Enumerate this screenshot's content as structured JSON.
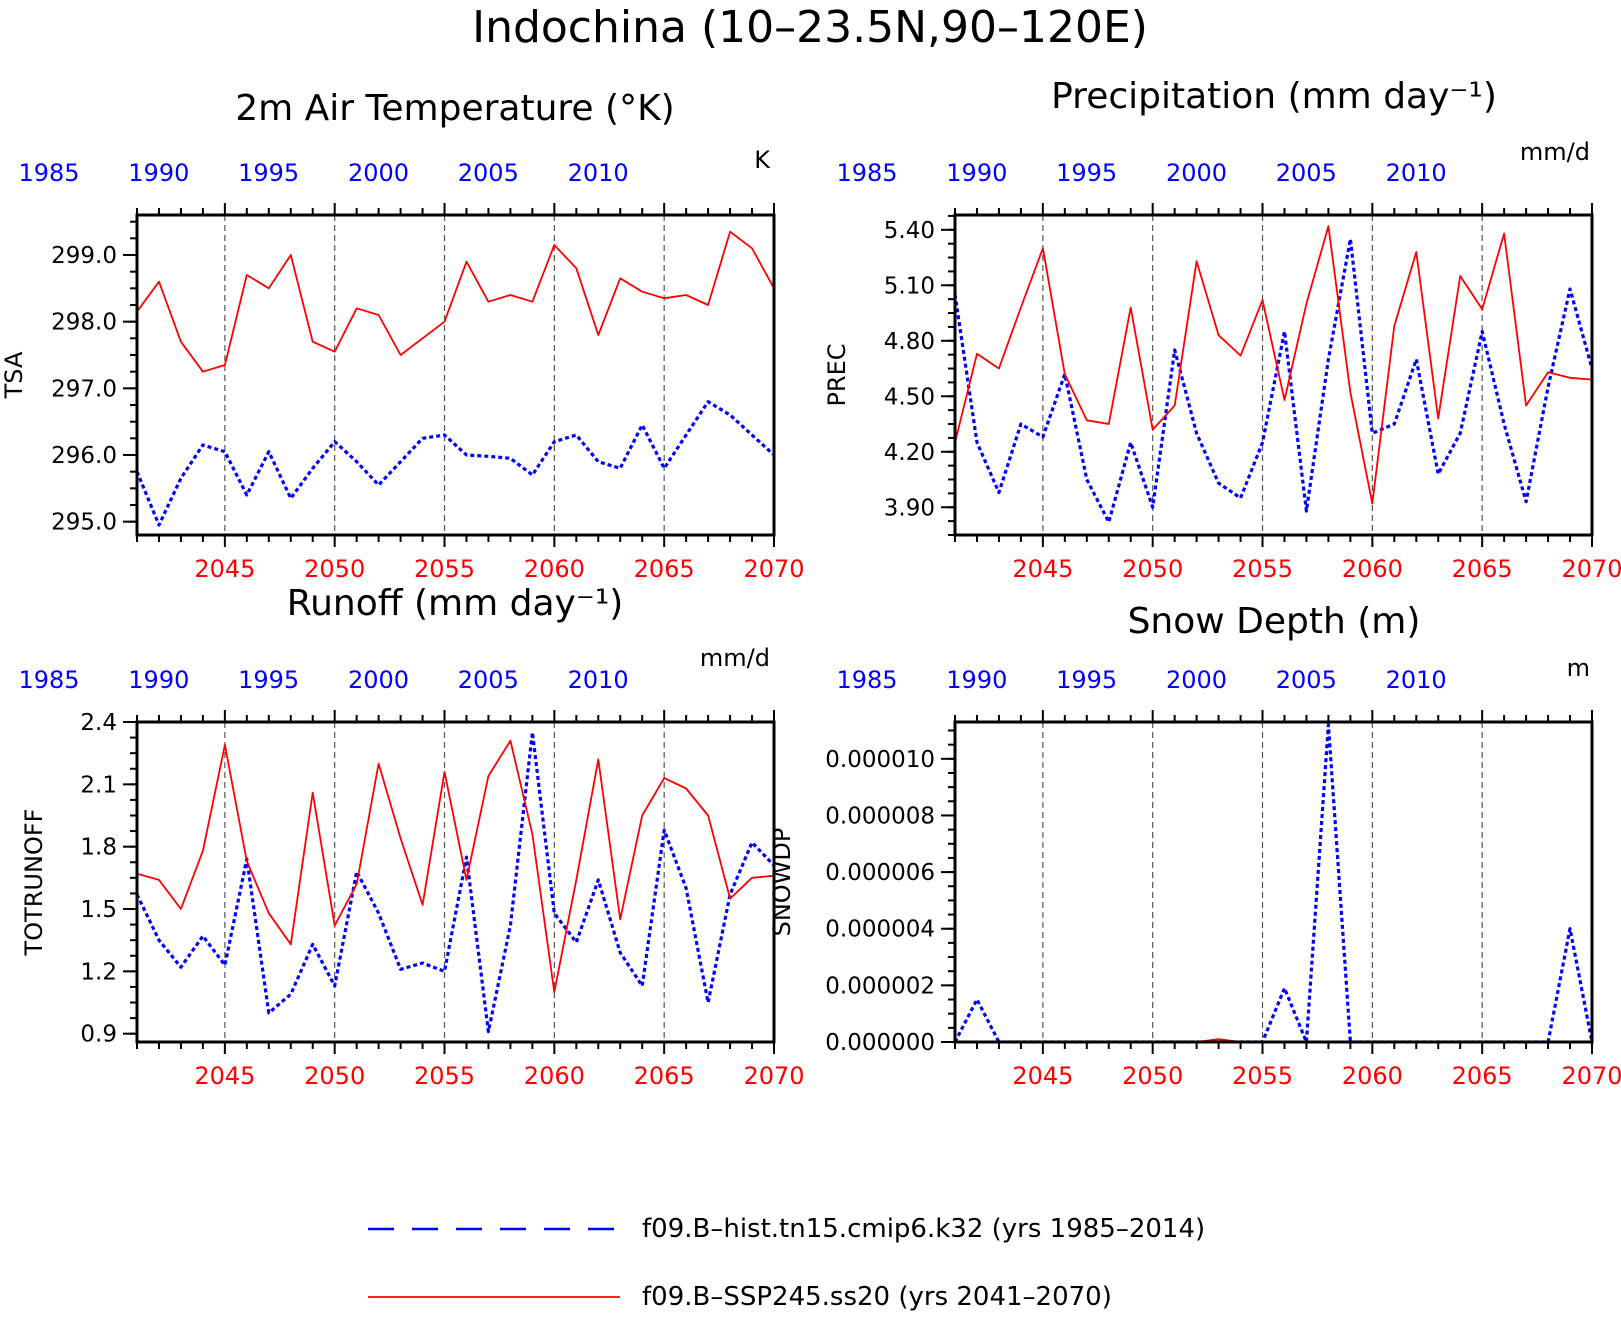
{
  "figure": {
    "title": "Indochina (10–23.5N,90–120E)"
  },
  "legend": {
    "placement": "bottom-center",
    "items": [
      {
        "label": "f09.B–hist.tn15.cmip6.k32 (yrs 1985–2014)",
        "color": "#0000ff",
        "style": "dashed"
      },
      {
        "label": "f09.B–SSP245.ss20 (yrs 2041–2070)",
        "color": "#ff0000",
        "style": "solid"
      }
    ]
  },
  "chart_data": [
    {
      "type": "line",
      "title": "2m Air Temperature (°K)",
      "ylabel": "TSA",
      "unit": "K",
      "ylim": [
        294.8,
        299.6
      ],
      "yticks": [
        295.0,
        296.0,
        297.0,
        298.0,
        299.0
      ],
      "ytick_labels": [
        "295.0",
        "296.0",
        "297.0",
        "298.0",
        "299.0"
      ],
      "x_bottom": {
        "ticks": [
          2045,
          2050,
          2055,
          2060,
          2065,
          2070
        ],
        "range": [
          2041,
          2070
        ]
      },
      "x_top": {
        "ticks": [
          1985,
          1990,
          1995,
          2000,
          2005,
          2010
        ]
      },
      "grid": "vertical dashed at bottom ticks",
      "series": [
        {
          "name": "f09.B–hist.tn15.cmip6.k32 (yrs 1985–2014)",
          "color": "#0000ff",
          "style": "dashed",
          "x": [
            2041,
            2042,
            2043,
            2044,
            2045,
            2046,
            2047,
            2048,
            2049,
            2050,
            2051,
            2052,
            2053,
            2054,
            2055,
            2056,
            2057,
            2058,
            2059,
            2060,
            2061,
            2062,
            2063,
            2064,
            2065,
            2066,
            2067,
            2068,
            2069,
            2070
          ],
          "values": [
            295.75,
            294.95,
            295.65,
            296.15,
            296.05,
            295.4,
            296.05,
            295.35,
            295.8,
            296.2,
            295.9,
            295.55,
            295.9,
            296.25,
            296.3,
            296.0,
            295.98,
            295.95,
            295.7,
            296.2,
            296.3,
            295.9,
            295.8,
            296.45,
            295.8,
            296.3,
            296.8,
            296.6,
            296.3,
            296.0
          ]
        },
        {
          "name": "f09.B–SSP245.ss20 (yrs 2041–2070)",
          "color": "#ff0000",
          "style": "solid",
          "x": [
            2041,
            2042,
            2043,
            2044,
            2045,
            2046,
            2047,
            2048,
            2049,
            2050,
            2051,
            2052,
            2053,
            2054,
            2055,
            2056,
            2057,
            2058,
            2059,
            2060,
            2061,
            2062,
            2063,
            2064,
            2065,
            2066,
            2067,
            2068,
            2069,
            2070
          ],
          "values": [
            298.15,
            298.6,
            297.7,
            297.25,
            297.35,
            298.7,
            298.5,
            299.0,
            297.7,
            297.55,
            298.2,
            298.1,
            297.5,
            297.75,
            298.0,
            298.9,
            298.3,
            298.4,
            298.3,
            299.15,
            298.8,
            297.8,
            298.65,
            298.45,
            298.35,
            298.4,
            298.25,
            299.35,
            299.1,
            298.5
          ]
        }
      ]
    },
    {
      "type": "line",
      "title": "Precipitation (mm day⁻¹)",
      "ylabel": "PREC",
      "unit": "mm/d",
      "ylim": [
        3.75,
        5.48
      ],
      "yticks": [
        3.9,
        4.2,
        4.5,
        4.8,
        5.1,
        5.4
      ],
      "ytick_labels": [
        "3.90",
        "4.20",
        "4.50",
        "4.80",
        "5.10",
        "5.40"
      ],
      "x_bottom": {
        "ticks": [
          2045,
          2050,
          2055,
          2060,
          2065,
          2070
        ],
        "range": [
          2041,
          2070
        ]
      },
      "x_top": {
        "ticks": [
          1985,
          1990,
          1995,
          2000,
          2005,
          2010
        ]
      },
      "grid": "vertical dashed at bottom ticks",
      "series": [
        {
          "name": "f09.B–hist.tn15.cmip6.k32 (yrs 1985–2014)",
          "color": "#0000ff",
          "style": "dashed",
          "x": [
            2041,
            2042,
            2043,
            2044,
            2045,
            2046,
            2047,
            2048,
            2049,
            2050,
            2051,
            2052,
            2053,
            2054,
            2055,
            2056,
            2057,
            2058,
            2059,
            2060,
            2061,
            2062,
            2063,
            2064,
            2065,
            2066,
            2067,
            2068,
            2069,
            2070
          ],
          "values": [
            5.05,
            4.25,
            3.98,
            4.35,
            4.28,
            4.62,
            4.05,
            3.82,
            4.25,
            3.9,
            4.75,
            4.3,
            4.03,
            3.95,
            4.25,
            4.85,
            3.88,
            4.7,
            5.35,
            4.3,
            4.35,
            4.7,
            4.08,
            4.3,
            4.85,
            4.35,
            3.93,
            4.55,
            5.08,
            4.65
          ]
        },
        {
          "name": "f09.B–SSP245.ss20 (yrs 2041–2070)",
          "color": "#ff0000",
          "style": "solid",
          "x": [
            2041,
            2042,
            2043,
            2044,
            2045,
            2046,
            2047,
            2048,
            2049,
            2050,
            2051,
            2052,
            2053,
            2054,
            2055,
            2056,
            2057,
            2058,
            2059,
            2060,
            2061,
            2062,
            2063,
            2064,
            2065,
            2066,
            2067,
            2068,
            2069,
            2070
          ],
          "values": [
            4.25,
            4.73,
            4.65,
            4.98,
            5.3,
            4.62,
            4.37,
            4.35,
            4.98,
            4.32,
            4.45,
            5.23,
            4.83,
            4.72,
            5.02,
            4.48,
            5.0,
            5.42,
            4.52,
            3.92,
            4.88,
            5.28,
            4.38,
            5.15,
            4.97,
            5.38,
            4.45,
            4.63,
            4.6,
            4.59
          ]
        }
      ]
    },
    {
      "type": "line",
      "title": "Runoff (mm day⁻¹)",
      "ylabel": "TOTRUNOFF",
      "unit": "mm/d",
      "ylim": [
        0.86,
        2.4
      ],
      "yticks": [
        0.9,
        1.2,
        1.5,
        1.8,
        2.1,
        2.4
      ],
      "ytick_labels": [
        "0.9",
        "1.2",
        "1.5",
        "1.8",
        "2.1",
        "2.4"
      ],
      "x_bottom": {
        "ticks": [
          2045,
          2050,
          2055,
          2060,
          2065,
          2070
        ],
        "range": [
          2041,
          2070
        ]
      },
      "x_top": {
        "ticks": [
          1985,
          1990,
          1995,
          2000,
          2005,
          2010
        ]
      },
      "grid": "vertical dashed at bottom ticks",
      "series": [
        {
          "name": "f09.B–hist.tn15.cmip6.k32 (yrs 1985–2014)",
          "color": "#0000ff",
          "style": "dashed",
          "x": [
            2041,
            2042,
            2043,
            2044,
            2045,
            2046,
            2047,
            2048,
            2049,
            2050,
            2051,
            2052,
            2053,
            2054,
            2055,
            2056,
            2057,
            2058,
            2059,
            2060,
            2061,
            2062,
            2063,
            2064,
            2065,
            2066,
            2067,
            2068,
            2069,
            2070
          ],
          "values": [
            1.57,
            1.35,
            1.22,
            1.37,
            1.23,
            1.74,
            1.0,
            1.09,
            1.33,
            1.13,
            1.68,
            1.48,
            1.21,
            1.24,
            1.2,
            1.75,
            0.91,
            1.42,
            2.35,
            1.48,
            1.34,
            1.64,
            1.29,
            1.13,
            1.88,
            1.6,
            1.05,
            1.57,
            1.82,
            1.71
          ]
        },
        {
          "name": "f09.B–SSP245.ss20 (yrs 2041–2070)",
          "color": "#ff0000",
          "style": "solid",
          "x": [
            2041,
            2042,
            2043,
            2044,
            2045,
            2046,
            2047,
            2048,
            2049,
            2050,
            2051,
            2052,
            2053,
            2054,
            2055,
            2056,
            2057,
            2058,
            2059,
            2060,
            2061,
            2062,
            2063,
            2064,
            2065,
            2066,
            2067,
            2068,
            2069,
            2070
          ],
          "values": [
            1.67,
            1.64,
            1.5,
            1.78,
            2.29,
            1.73,
            1.48,
            1.33,
            2.06,
            1.42,
            1.62,
            2.2,
            1.84,
            1.52,
            2.16,
            1.64,
            2.14,
            2.31,
            1.86,
            1.1,
            1.64,
            2.22,
            1.45,
            1.95,
            2.13,
            2.08,
            1.95,
            1.55,
            1.65,
            1.66
          ]
        }
      ]
    },
    {
      "type": "line",
      "title": "Snow Depth (m)",
      "ylabel": "SNOWDP",
      "unit": "m",
      "ylim": [
        0.0,
        1.13e-05
      ],
      "yticks": [
        0.0,
        2e-06,
        4e-06,
        6e-06,
        8e-06,
        1e-05
      ],
      "ytick_labels": [
        "0.000000",
        "0.000002",
        "0.000004",
        "0.000006",
        "0.000008",
        "0.000010"
      ],
      "x_bottom": {
        "ticks": [
          2045,
          2050,
          2055,
          2060,
          2065,
          2070
        ],
        "range": [
          2041,
          2070
        ]
      },
      "x_top": {
        "ticks": [
          1985,
          1990,
          1995,
          2000,
          2005,
          2010
        ]
      },
      "grid": "vertical dashed at bottom ticks",
      "series": [
        {
          "name": "f09.B–hist.tn15.cmip6.k32 (yrs 1985–2014)",
          "color": "#0000ff",
          "style": "dashed",
          "x": [
            2041,
            2042,
            2043,
            2044,
            2045,
            2046,
            2047,
            2048,
            2049,
            2050,
            2051,
            2052,
            2053,
            2054,
            2055,
            2056,
            2057,
            2058,
            2059,
            2060,
            2061,
            2062,
            2063,
            2064,
            2065,
            2066,
            2067,
            2068,
            2069,
            2070
          ],
          "values": [
            0.0,
            1.5e-06,
            0.0,
            0.0,
            0.0,
            0.0,
            0.0,
            0.0,
            0.0,
            0.0,
            0.0,
            0.0,
            0.0,
            0.0,
            0.0,
            1.9e-06,
            0.0,
            1.12e-05,
            0.0,
            0.0,
            0.0,
            0.0,
            0.0,
            0.0,
            0.0,
            0.0,
            0.0,
            0.0,
            4e-06,
            0.0
          ]
        },
        {
          "name": "f09.B–SSP245.ss20 (yrs 2041–2070)",
          "color": "#ff0000",
          "style": "solid",
          "x": [
            2041,
            2042,
            2043,
            2044,
            2045,
            2046,
            2047,
            2048,
            2049,
            2050,
            2051,
            2052,
            2053,
            2054,
            2055,
            2056,
            2057,
            2058,
            2059,
            2060,
            2061,
            2062,
            2063,
            2064,
            2065,
            2066,
            2067,
            2068,
            2069,
            2070
          ],
          "values": [
            0,
            0,
            0,
            0,
            0,
            0,
            0,
            0,
            0,
            0,
            0,
            0,
            1e-07,
            0,
            0,
            0,
            0,
            0,
            0,
            0,
            0,
            0,
            0,
            0,
            0,
            0,
            0,
            0,
            0,
            0
          ]
        }
      ]
    }
  ]
}
